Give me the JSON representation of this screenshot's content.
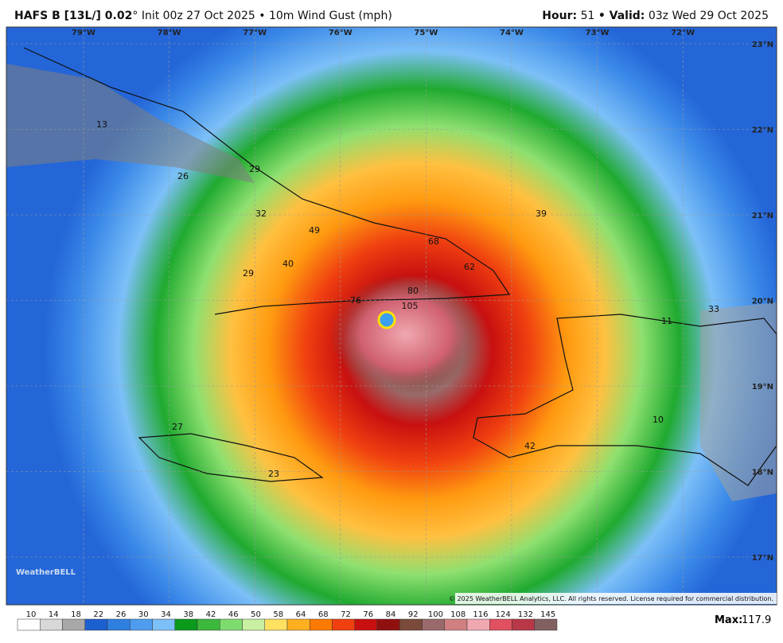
{
  "header": {
    "model": "HAFS B [13L/] 0.02",
    "degree": "°",
    "init": "Init 00z 27 Oct 2025 • 10m Wind Gust (mph)",
    "hour_label": "Hour:",
    "hour": "51",
    "valid_label": "• Valid:",
    "valid": "03z Wed 29 Oct 2025"
  },
  "map": {
    "lon_labels": [
      "79°W",
      "78°W",
      "77°W",
      "76°W",
      "75°W",
      "74°W",
      "73°W",
      "72°W"
    ],
    "lat_labels": [
      "23°N",
      "22°N",
      "21°N",
      "20°N",
      "19°N",
      "18°N",
      "17°N"
    ],
    "point_labels": [
      "13",
      "26",
      "29",
      "32",
      "49",
      "40",
      "29",
      "76",
      "80",
      "105",
      "68",
      "62",
      "39",
      "33",
      "11",
      "10",
      "42",
      "27",
      "23"
    ],
    "copyright": "© 2025 WeatherBELL Analytics, LLC. All rights reserved. License required for commercial distribution.",
    "logo": "WeatherBELL"
  },
  "colorbar": {
    "labels": [
      "10",
      "14",
      "18",
      "22",
      "26",
      "30",
      "34",
      "38",
      "42",
      "46",
      "50",
      "58",
      "64",
      "68",
      "72",
      "76",
      "84",
      "92",
      "100",
      "108",
      "116",
      "124",
      "132",
      "145"
    ],
    "colors": [
      "#ffffff",
      "#d8d8d8",
      "#a8a8a8",
      "#1c5fd0",
      "#2f7fe0",
      "#4d9cf0",
      "#7cc0f8",
      "#0a9a1c",
      "#3cb83c",
      "#7ddc6e",
      "#c8f0a0",
      "#ffe060",
      "#ffb020",
      "#ff7a00",
      "#f04010",
      "#c81010",
      "#901010",
      "#7a4a3a",
      "#9a6a6a",
      "#d08080",
      "#f0a8b0",
      "#e05060",
      "#b83848",
      "#806060"
    ],
    "max_label": "Max:",
    "max": "117.9"
  }
}
